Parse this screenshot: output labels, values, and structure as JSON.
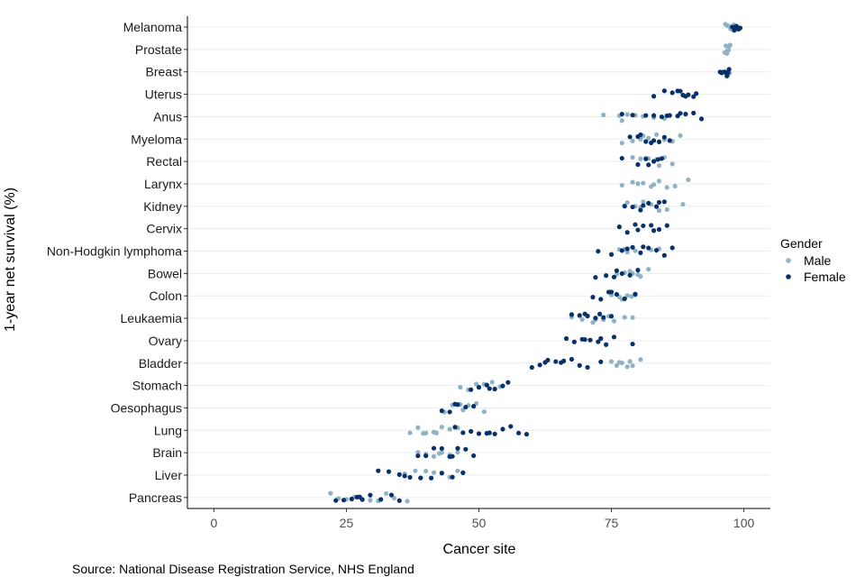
{
  "chart_data": {
    "type": "scatter",
    "xlabel": "Cancer site",
    "ylabel": "1-year net survival (%)",
    "xlim": [
      -5,
      105
    ],
    "xticks": [
      0,
      25,
      50,
      75,
      100
    ],
    "grid": "horizontal",
    "legend": {
      "title": "Gender",
      "placement": "right",
      "entries": [
        "Male",
        "Female"
      ]
    },
    "colors": {
      "Male": "#8fb3c4",
      "Female": "#08306b"
    },
    "categories": [
      "Melanoma",
      "Prostate",
      "Breast",
      "Uterus",
      "Anus",
      "Myeloma",
      "Rectal",
      "Larynx",
      "Kidney",
      "Cervix",
      "Non-Hodgkin lymphoma",
      "Bowel",
      "Colon",
      "Leukaemia",
      "Ovary",
      "Bladder",
      "Stomach",
      "Oesophagus",
      "Lung",
      "Brain",
      "Liver",
      "Pancreas"
    ],
    "series": [
      {
        "name": "Male",
        "points": [
          {
            "category": "Melanoma",
            "values": [
              96.5,
              97.2,
              97.8,
              98.1,
              96.9,
              97.5
            ]
          },
          {
            "category": "Prostate",
            "values": [
              96.4,
              96.8,
              97.1,
              97.4,
              96.6,
              97.0,
              97.3,
              96.9
            ]
          },
          {
            "category": "Breast",
            "values": [
              97.0,
              97.3,
              96.8
            ]
          },
          {
            "category": "Anus",
            "values": [
              73.5,
              76.5,
              78.0,
              79.5,
              81.0,
              83.0,
              85.0,
              77.0
            ]
          },
          {
            "category": "Myeloma",
            "values": [
              77.0,
              79.0,
              80.5,
              82.0,
              83.5,
              85.0,
              86.5,
              88.0,
              81.0,
              84.0
            ]
          },
          {
            "category": "Rectal",
            "values": [
              79.0,
              80.5,
              82.0,
              83.5,
              85.0,
              86.5,
              81.5,
              84.0
            ]
          },
          {
            "category": "Larynx",
            "values": [
              77.0,
              79.0,
              81.0,
              82.5,
              84.0,
              85.5,
              87.0,
              89.5,
              80.0,
              83.0
            ]
          },
          {
            "category": "Kidney",
            "values": [
              78.0,
              79.5,
              81.0,
              82.5,
              84.0,
              85.5,
              88.5,
              80.5
            ]
          },
          {
            "category": "Non-Hodgkin lymphoma",
            "values": [
              75.0,
              76.5,
              78.0,
              79.5,
              81.0,
              82.5,
              84.0,
              77.5
            ]
          },
          {
            "category": "Bowel",
            "values": [
              76.0,
              77.5,
              79.0,
              80.5,
              82.0,
              78.5,
              80.0
            ]
          },
          {
            "category": "Colon",
            "values": [
              75.0,
              76.5,
              78.0,
              79.5,
              77.0,
              78.8
            ]
          },
          {
            "category": "Leukaemia",
            "values": [
              67.5,
              69.5,
              71.5,
              73.5,
              75.5,
              77.5,
              79.0,
              72.0,
              74.5
            ]
          },
          {
            "category": "Bladder",
            "values": [
              75.0,
              76.0,
              77.0,
              78.0,
              79.0,
              80.5,
              76.5,
              78.5
            ]
          },
          {
            "category": "Stomach",
            "values": [
              46.5,
              48.0,
              49.5,
              51.0,
              52.5,
              54.0,
              50.0
            ]
          },
          {
            "category": "Oesophagus",
            "values": [
              43.5,
              45.0,
              46.5,
              48.0,
              49.5,
              51.0,
              47.0
            ]
          },
          {
            "category": "Lung",
            "values": [
              37.0,
              38.5,
              40.0,
              41.5,
              43.0,
              44.5,
              46.0,
              42.0,
              39.5
            ]
          },
          {
            "category": "Brain",
            "values": [
              38.5,
              40.0,
              41.5,
              43.0,
              44.5,
              46.0,
              42.5
            ]
          },
          {
            "category": "Liver",
            "values": [
              36.0,
              38.0,
              40.0,
              41.5,
              43.0,
              44.5,
              46.0,
              47.0,
              39.0
            ]
          },
          {
            "category": "Pancreas",
            "values": [
              22.0,
              23.5,
              25.0,
              26.5,
              28.0,
              29.5,
              31.0,
              32.5,
              34.0,
              36.5
            ]
          }
        ]
      },
      {
        "name": "Female",
        "points": [
          {
            "category": "Melanoma",
            "values": [
              97.8,
              98.2,
              98.6,
              99.0,
              99.3,
              98.4,
              98.9
            ]
          },
          {
            "category": "Breast",
            "values": [
              95.5,
              96.0,
              96.4,
              96.8,
              97.2,
              95.8,
              96.6,
              97.0
            ]
          },
          {
            "category": "Uterus",
            "values": [
              83.0,
              85.0,
              86.5,
              87.5,
              88.5,
              89.5,
              90.5,
              91.0,
              89.0,
              88.0
            ]
          },
          {
            "category": "Anus",
            "values": [
              77.0,
              79.0,
              81.5,
              83.0,
              84.5,
              86.0,
              87.5,
              89.0,
              90.5,
              92.0,
              85.5,
              88.0
            ]
          },
          {
            "category": "Myeloma",
            "values": [
              78.5,
              80.0,
              81.5,
              83.0,
              84.0,
              85.0,
              86.0,
              82.5,
              80.5
            ]
          },
          {
            "category": "Rectal",
            "values": [
              77.0,
              80.0,
              81.5,
              83.0,
              84.5,
              82.0,
              83.8
            ]
          },
          {
            "category": "Kidney",
            "values": [
              77.5,
              79.0,
              80.5,
              82.0,
              83.5,
              85.0,
              81.0,
              84.0
            ]
          },
          {
            "category": "Cervix",
            "values": [
              76.5,
              78.0,
              79.5,
              81.0,
              82.5,
              84.0,
              85.5,
              80.0,
              83.0
            ]
          },
          {
            "category": "Non-Hodgkin lymphoma",
            "values": [
              72.5,
              75.0,
              77.0,
              79.0,
              80.5,
              82.0,
              83.5,
              85.0,
              86.5,
              78.0,
              81.0
            ]
          },
          {
            "category": "Bowel",
            "values": [
              72.0,
              74.0,
              75.5,
              77.0,
              78.5,
              80.0,
              76.0
            ]
          },
          {
            "category": "Colon",
            "values": [
              71.5,
              73.0,
              74.5,
              76.0,
              77.5,
              79.5,
              75.0
            ]
          },
          {
            "category": "Leukaemia",
            "values": [
              67.5,
              69.0,
              70.5,
              72.0,
              73.5,
              75.0,
              70.0,
              72.8
            ]
          },
          {
            "category": "Ovary",
            "values": [
              66.5,
              68.0,
              69.5,
              71.0,
              72.5,
              74.0,
              75.5,
              79.0,
              70.0,
              73.0
            ]
          },
          {
            "category": "Bladder",
            "values": [
              60.0,
              61.5,
              63.0,
              64.5,
              66.0,
              67.5,
              69.0,
              70.5,
              73.0,
              62.5,
              65.5
            ]
          },
          {
            "category": "Stomach",
            "values": [
              48.5,
              50.0,
              51.5,
              53.0,
              54.5,
              55.5,
              52.0
            ]
          },
          {
            "category": "Oesophagus",
            "values": [
              43.0,
              44.5,
              46.0,
              47.5,
              49.0,
              45.5
            ]
          },
          {
            "category": "Lung",
            "values": [
              45.5,
              47.0,
              48.5,
              50.0,
              51.5,
              53.0,
              54.5,
              56.0,
              57.5,
              59.0,
              52.0
            ]
          },
          {
            "category": "Brain",
            "values": [
              38.5,
              40.0,
              41.5,
              43.0,
              44.5,
              46.0,
              47.5,
              49.0,
              45.0
            ]
          },
          {
            "category": "Liver",
            "values": [
              31.0,
              33.0,
              35.0,
              37.0,
              39.0,
              41.0,
              43.0,
              45.0,
              47.0,
              36.0
            ]
          },
          {
            "category": "Pancreas",
            "values": [
              23.0,
              24.5,
              26.0,
              27.0,
              28.0,
              29.5,
              31.5,
              33.5,
              35.0,
              27.5
            ]
          }
        ]
      }
    ]
  },
  "source": "Source: National Disease Registration Service, NHS England"
}
